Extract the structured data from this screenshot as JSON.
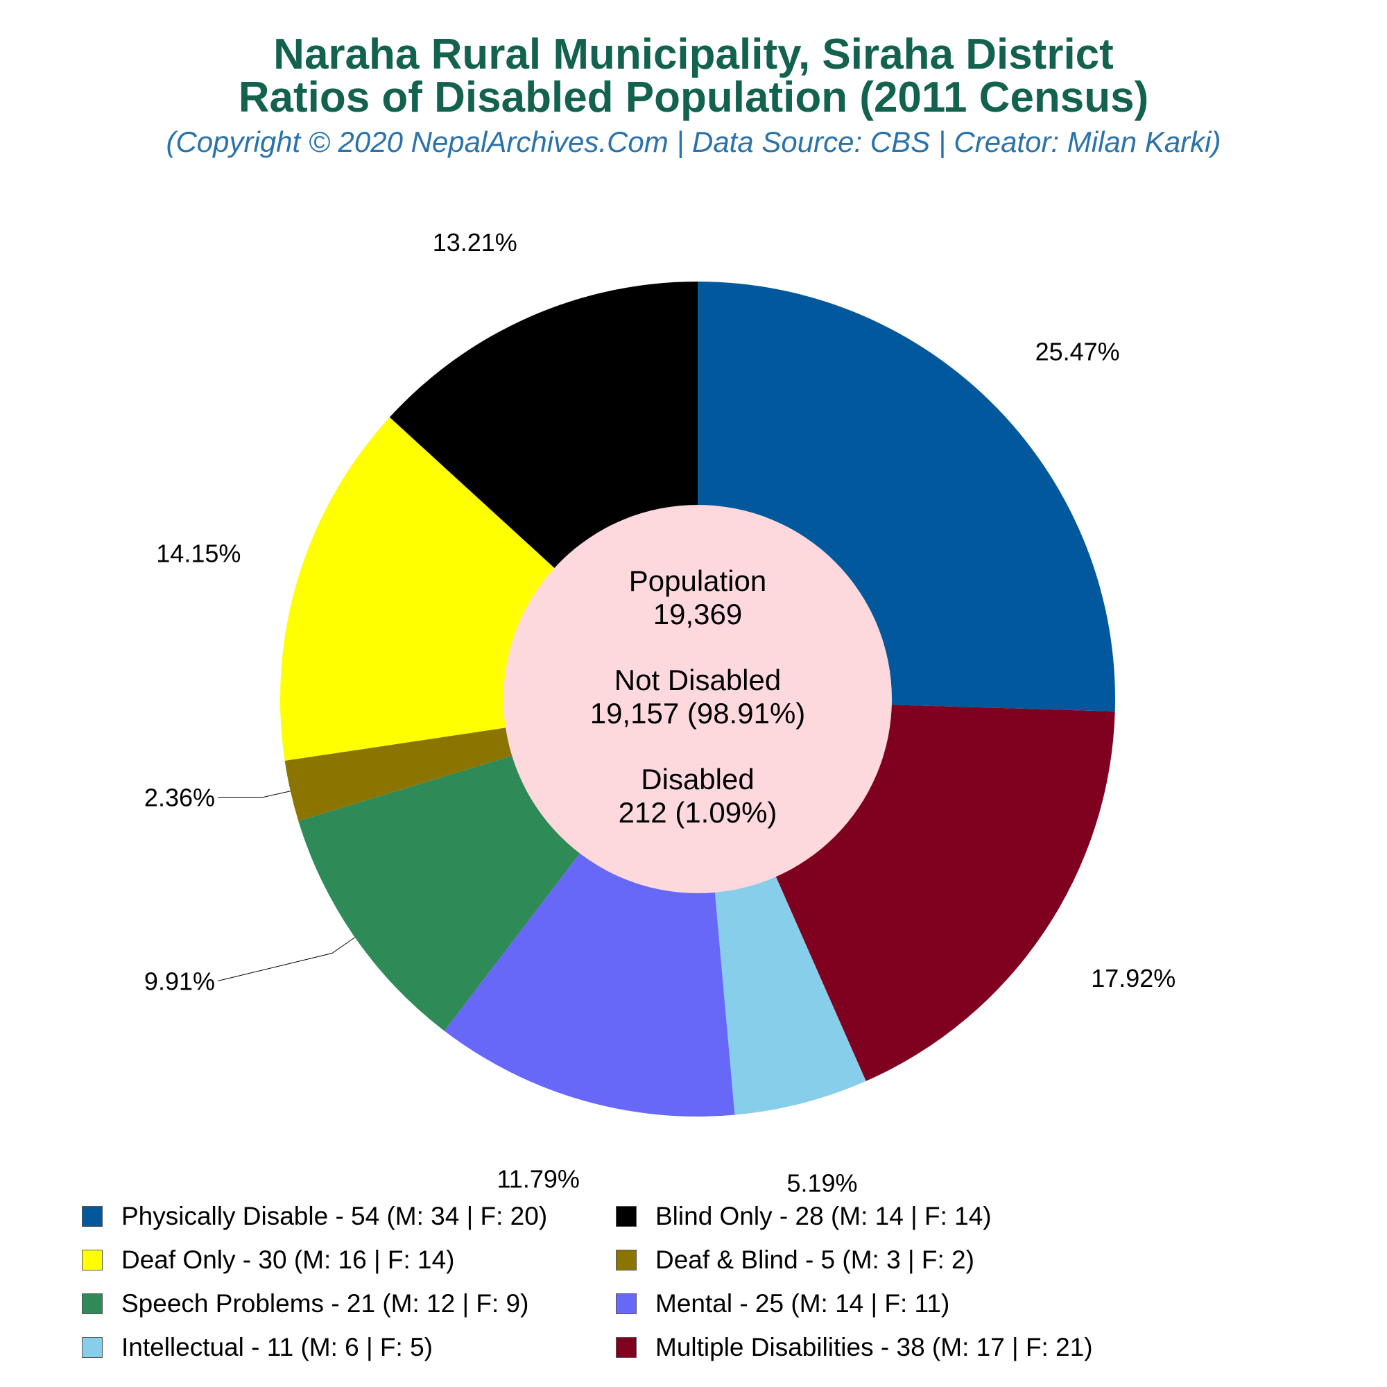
{
  "header": {
    "title_line1": "Naraha Rural Municipality, Siraha District",
    "title_line2": "Ratios of Disabled Population (2011 Census)",
    "subtitle": "(Copyright © 2020 NepalArchives.Com | Data Source: CBS | Creator: Milan Karki)"
  },
  "center": {
    "population_label": "Population",
    "population_value": "19,369",
    "not_disabled_label": "Not Disabled",
    "not_disabled_value": "19,157 (98.91%)",
    "disabled_label": "Disabled",
    "disabled_value": "212 (1.09%)"
  },
  "center_color": "#fdd9de",
  "chart_data": {
    "type": "pie",
    "donut": true,
    "title": "Naraha Rural Municipality, Siraha District Ratios of Disabled Population (2011 Census)",
    "slices": [
      {
        "name": "Physically Disable",
        "value": 54,
        "male": 34,
        "female": 20,
        "percent_label": "25.47%",
        "color": "#02589c",
        "legend_label": "Physically Disable - 54 (M: 34 | F: 20)"
      },
      {
        "name": "Multiple Disabilities",
        "value": 38,
        "male": 17,
        "female": 21,
        "percent_label": "17.92%",
        "color": "#800020",
        "legend_label": "Multiple Disabilities - 38 (M: 17 | F: 21)"
      },
      {
        "name": "Intellectual",
        "value": 11,
        "male": 6,
        "female": 5,
        "percent_label": "5.19%",
        "color": "#87ceeb",
        "legend_label": "Intellectual - 11 (M: 6 | F: 5)"
      },
      {
        "name": "Mental",
        "value": 25,
        "male": 14,
        "female": 11,
        "percent_label": "11.79%",
        "color": "#6868f8",
        "legend_label": "Mental - 25 (M: 14 | F: 11)"
      },
      {
        "name": "Speech Problems",
        "value": 21,
        "male": 12,
        "female": 9,
        "percent_label": "9.91%",
        "color": "#2e8a57",
        "legend_label": "Speech Problems - 21 (M: 12 | F: 9)"
      },
      {
        "name": "Deaf & Blind",
        "value": 5,
        "male": 3,
        "female": 2,
        "percent_label": "2.36%",
        "color": "#8b7500",
        "legend_label": "Deaf & Blind - 5 (M: 3 | F: 2)"
      },
      {
        "name": "Deaf Only",
        "value": 30,
        "male": 16,
        "female": 14,
        "percent_label": "14.15%",
        "color": "#ffff00",
        "legend_label": "Deaf Only - 30 (M: 16 | F: 14)"
      },
      {
        "name": "Blind Only",
        "value": 28,
        "male": 14,
        "female": 14,
        "percent_label": "13.21%",
        "color": "#000000",
        "legend_label": "Blind Only - 28 (M: 14 | F: 14)"
      }
    ],
    "legend_order": [
      "Physically Disable",
      "Blind Only",
      "Deaf Only",
      "Deaf & Blind",
      "Speech Problems",
      "Mental",
      "Intellectual",
      "Multiple Disabilities"
    ],
    "legend_position": "bottom"
  }
}
